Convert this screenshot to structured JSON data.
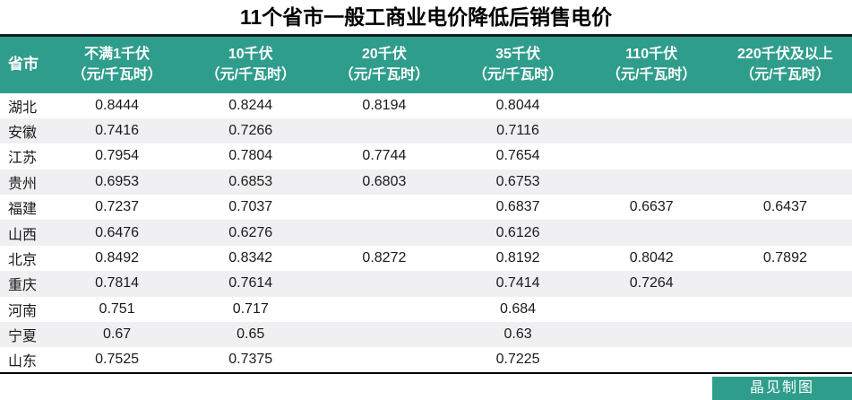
{
  "title": "11个省市一般工商业电价降低后销售电价",
  "chart_data": {
    "type": "table",
    "title": "11个省市一般工商业电价降低后销售电价",
    "province_header": "省市",
    "unit_note": "(元/千瓦时)",
    "columns": [
      {
        "label": "不满1千伏",
        "unit": "（元/千瓦时）"
      },
      {
        "label": "10千伏",
        "unit": "（元/千瓦时）"
      },
      {
        "label": "20千伏",
        "unit": "（元/千瓦时）"
      },
      {
        "label": "35千伏",
        "unit": "（元/千瓦时）"
      },
      {
        "label": "110千伏",
        "unit": "（元/千瓦时）"
      },
      {
        "label": "220千伏及以上",
        "unit": "（元/千瓦时）"
      }
    ],
    "rows": [
      {
        "province": "湖北",
        "values": [
          "0.8444",
          "0.8244",
          "0.8194",
          "0.8044",
          "",
          ""
        ]
      },
      {
        "province": "安徽",
        "values": [
          "0.7416",
          "0.7266",
          "",
          "0.7116",
          "",
          ""
        ]
      },
      {
        "province": "江苏",
        "values": [
          "0.7954",
          "0.7804",
          "0.7744",
          "0.7654",
          "",
          ""
        ]
      },
      {
        "province": "贵州",
        "values": [
          "0.6953",
          "0.6853",
          "0.6803",
          "0.6753",
          "",
          ""
        ]
      },
      {
        "province": "福建",
        "values": [
          "0.7237",
          "0.7037",
          "",
          "0.6837",
          "0.6637",
          "0.6437"
        ]
      },
      {
        "province": "山西",
        "values": [
          "0.6476",
          "0.6276",
          "",
          "0.6126",
          "",
          ""
        ]
      },
      {
        "province": "北京",
        "values": [
          "0.8492",
          "0.8342",
          "0.8272",
          "0.8192",
          "0.8042",
          "0.7892"
        ]
      },
      {
        "province": "重庆",
        "values": [
          "0.7814",
          "0.7614",
          "",
          "0.7414",
          "0.7264",
          ""
        ]
      },
      {
        "province": "河南",
        "values": [
          "0.751",
          "0.717",
          "",
          "0.684",
          "",
          ""
        ]
      },
      {
        "province": "宁夏",
        "values": [
          "0.67",
          "0.65",
          "",
          "0.63",
          "",
          ""
        ]
      },
      {
        "province": "山东",
        "values": [
          "0.7525",
          "0.7375",
          "",
          "0.7225",
          "",
          ""
        ]
      }
    ]
  },
  "footer": {
    "credit": "晶见制图"
  },
  "colors": {
    "header_bg": "#2F9D8C",
    "stripe_bg": "#F0F0F2",
    "top_border": "#151B21",
    "bottom_border": "#000000",
    "credit_bg": "#2F9D8C",
    "text_color": "#1A1A1A",
    "header_text": "#FFFFFF"
  }
}
